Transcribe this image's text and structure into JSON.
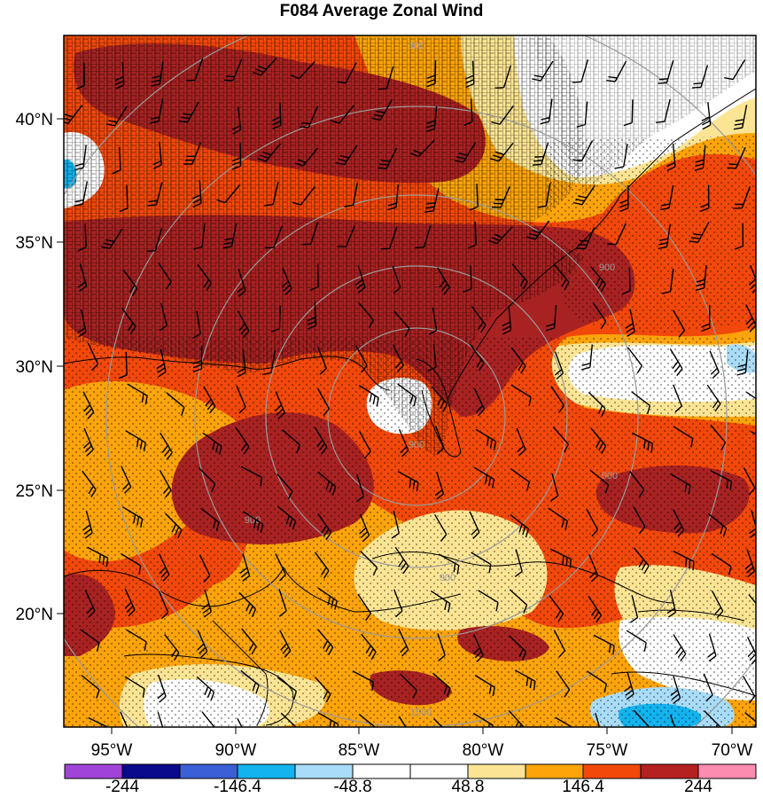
{
  "title": "F084 Average Zonal Wind",
  "lat_labels": [
    "40°N",
    "35°N",
    "30°N",
    "25°N",
    "20°N"
  ],
  "lon_labels": [
    "95°W",
    "90°W",
    "85°W",
    "80°W",
    "75°W",
    "70°W"
  ],
  "colorbar": {
    "colors": [
      "#a044d8",
      "#0a0a8c",
      "#3a5fd6",
      "#12b3ee",
      "#a9dcf7",
      "#ffffff",
      "#ffffff",
      "#fbe594",
      "#fca40a",
      "#f2480a",
      "#b52020",
      "#fc8cb0"
    ],
    "labels": [
      "-244",
      "-146.4",
      "-48.8",
      "48.8",
      "146.4",
      "244"
    ]
  },
  "ring_labels": [
    "900",
    "900",
    "900",
    "900",
    "900",
    "1500",
    "900"
  ],
  "palette": {
    "dark_red": "#a82222",
    "red_orange": "#f2480a",
    "orange": "#fca40a",
    "yellow": "#fbe594",
    "light_blue": "#a9dcf7",
    "blue": "#12b3ee",
    "white": "#ffffff"
  }
}
